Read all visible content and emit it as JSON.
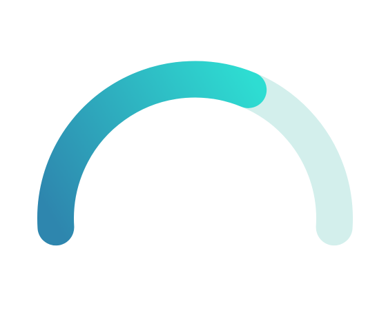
{
  "gauge": {
    "progress_fraction": 0.62,
    "colors": {
      "track": "#D3EFEC",
      "fill_start": "#2E86AE",
      "fill_end": "#2EDDD2"
    }
  }
}
